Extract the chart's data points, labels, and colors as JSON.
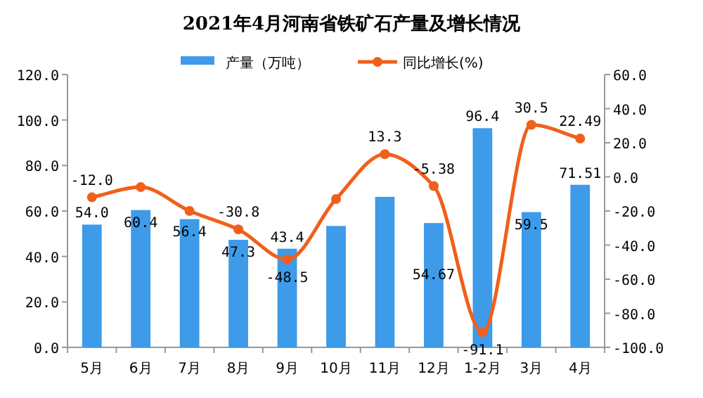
{
  "chart_data": {
    "type": "bar",
    "title": "2021年4月河南省铁矿石产量及增长情况",
    "categories": [
      "5月",
      "6月",
      "7月",
      "8月",
      "9月",
      "10月",
      "11月",
      "12月",
      "1-2月",
      "3月",
      "4月"
    ],
    "series": [
      {
        "name": "产量（万吨）",
        "color": "#3d9be9",
        "values": [
          54.0,
          60.4,
          56.4,
          47.3,
          43.4,
          53.4,
          66.2,
          54.67,
          96.4,
          59.5,
          71.51
        ],
        "value_labels": [
          "54.0",
          "60.4",
          "56.4",
          "47.3",
          "43.4",
          null,
          null,
          "54.67",
          "96.4",
          "59.5",
          "71.51"
        ]
      },
      {
        "name": "同比增长(%)",
        "type": "line",
        "axis": "y2",
        "color": "#f0601a",
        "marker": "circle",
        "values": [
          -12.0,
          -6,
          -20,
          -30.8,
          -48.5,
          -13,
          13.3,
          -5.38,
          -91.1,
          30.5,
          22.49
        ],
        "value_labels": [
          "-12.0",
          null,
          null,
          "-30.8",
          "-48.5",
          null,
          "13.3",
          "-5.38",
          "-91.1",
          "30.5",
          "22.49"
        ]
      }
    ],
    "ylim": [
      0,
      120
    ],
    "yticks": [
      {
        "value": 0,
        "label": "0.0"
      },
      {
        "value": 20,
        "label": "20.0"
      },
      {
        "value": 40,
        "label": "40.0"
      },
      {
        "value": 60,
        "label": "60.0"
      },
      {
        "value": 80,
        "label": "80.0"
      },
      {
        "value": 100,
        "label": "100.0"
      },
      {
        "value": 120,
        "label": "120.0"
      }
    ],
    "y2lim": [
      -100,
      60
    ],
    "y2ticks": [
      {
        "value": -100,
        "label": "-100.0"
      },
      {
        "value": -80,
        "label": "-80.0"
      },
      {
        "value": -60,
        "label": "-60.0"
      },
      {
        "value": -40,
        "label": "-40.0"
      },
      {
        "value": -20,
        "label": "-20.0"
      },
      {
        "value": 0,
        "label": "0.0"
      },
      {
        "value": 20,
        "label": "20.0"
      },
      {
        "value": 40,
        "label": "40.0"
      },
      {
        "value": 60,
        "label": "60.0"
      }
    ],
    "legend": "top",
    "grid": false
  }
}
